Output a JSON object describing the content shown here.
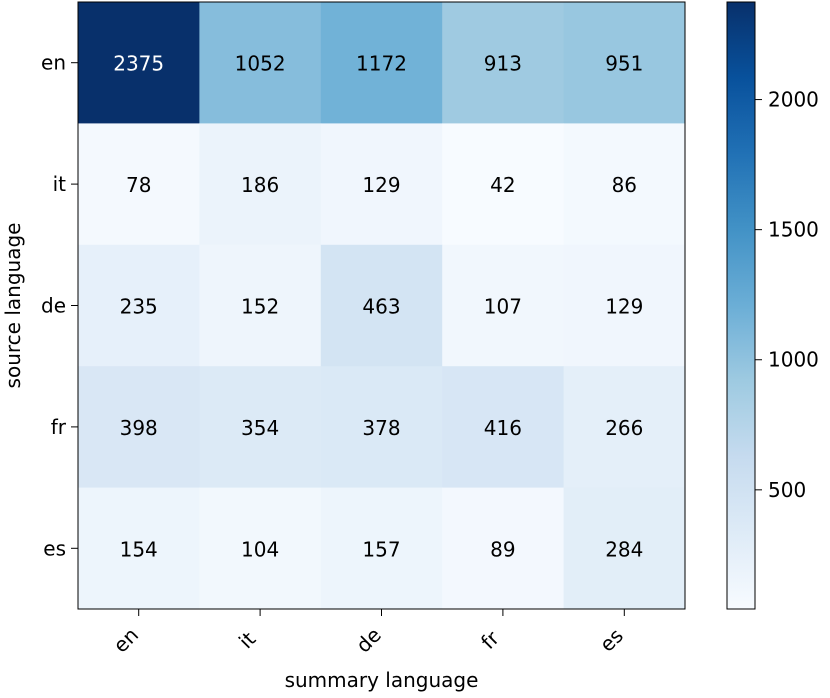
{
  "chart_data": {
    "type": "heatmap",
    "title": "",
    "xlabel": "summary language",
    "ylabel": "source language",
    "x_categories": [
      "en",
      "it",
      "de",
      "fr",
      "es"
    ],
    "y_categories": [
      "en",
      "it",
      "de",
      "fr",
      "es"
    ],
    "values": [
      [
        2375,
        1052,
        1172,
        913,
        951
      ],
      [
        78,
        186,
        129,
        42,
        86
      ],
      [
        235,
        152,
        463,
        107,
        129
      ],
      [
        398,
        354,
        378,
        416,
        266
      ],
      [
        154,
        104,
        157,
        89,
        284
      ]
    ],
    "colormap": "Blues",
    "color_low": "#f7fbff",
    "color_high": "#08306b",
    "vmin": 42,
    "vmax": 2375,
    "colorbar_ticks": [
      500,
      1000,
      1500,
      2000
    ],
    "text_color_dark": "#000000",
    "text_color_light": "#ffffff",
    "grid": false,
    "legend": "colorbar-right"
  }
}
